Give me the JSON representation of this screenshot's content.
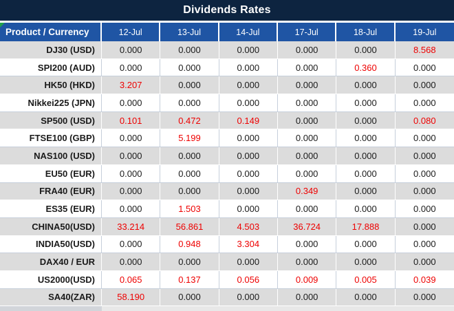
{
  "title": "Dividends Rates",
  "table": {
    "product_header": "Product / Currency",
    "date_headers": [
      "12-Jul",
      "13-Jul",
      "14-Jul",
      "17-Jul",
      "18-Jul",
      "19-Jul"
    ],
    "rows": [
      {
        "product": "DJ30 (USD)",
        "values": [
          "0.000",
          "0.000",
          "0.000",
          "0.000",
          "0.000",
          "8.568"
        ]
      },
      {
        "product": "SPI200 (AUD)",
        "values": [
          "0.000",
          "0.000",
          "0.000",
          "0.000",
          "0.360",
          "0.000"
        ]
      },
      {
        "product": "HK50 (HKD)",
        "values": [
          "3.207",
          "0.000",
          "0.000",
          "0.000",
          "0.000",
          "0.000"
        ]
      },
      {
        "product": "Nikkei225 (JPN)",
        "values": [
          "0.000",
          "0.000",
          "0.000",
          "0.000",
          "0.000",
          "0.000"
        ]
      },
      {
        "product": "SP500 (USD)",
        "values": [
          "0.101",
          "0.472",
          "0.149",
          "0.000",
          "0.000",
          "0.080"
        ]
      },
      {
        "product": "FTSE100 (GBP)",
        "values": [
          "0.000",
          "5.199",
          "0.000",
          "0.000",
          "0.000",
          "0.000"
        ]
      },
      {
        "product": "NAS100 (USD)",
        "values": [
          "0.000",
          "0.000",
          "0.000",
          "0.000",
          "0.000",
          "0.000"
        ]
      },
      {
        "product": "EU50 (EUR)",
        "values": [
          "0.000",
          "0.000",
          "0.000",
          "0.000",
          "0.000",
          "0.000"
        ]
      },
      {
        "product": "FRA40 (EUR)",
        "values": [
          "0.000",
          "0.000",
          "0.000",
          "0.349",
          "0.000",
          "0.000"
        ]
      },
      {
        "product": "ES35 (EUR)",
        "values": [
          "0.000",
          "1.503",
          "0.000",
          "0.000",
          "0.000",
          "0.000"
        ]
      },
      {
        "product": "CHINA50(USD)",
        "values": [
          "33.214",
          "56.861",
          "4.503",
          "36.724",
          "17.888",
          "0.000"
        ]
      },
      {
        "product": "INDIA50(USD)",
        "values": [
          "0.000",
          "0.948",
          "3.304",
          "0.000",
          "0.000",
          "0.000"
        ]
      },
      {
        "product": "DAX40 / EUR",
        "values": [
          "0.000",
          "0.000",
          "0.000",
          "0.000",
          "0.000",
          "0.000"
        ]
      },
      {
        "product": "US2000(USD)",
        "values": [
          "0.065",
          "0.137",
          "0.056",
          "0.009",
          "0.005",
          "0.039"
        ]
      },
      {
        "product": "SA40(ZAR)",
        "values": [
          "58.190",
          "0.000",
          "0.000",
          "0.000",
          "0.000",
          "0.000"
        ]
      }
    ],
    "zero_value": "0.000"
  },
  "colors": {
    "title_bar_bg": "#0d2440",
    "header_row_bg": "#1f55a4",
    "stripe_row_bg": "#dcdcdc",
    "value_red": "#ee0000",
    "value_black": "#1a1a1a",
    "corner_marker_green": "#21a14b"
  }
}
